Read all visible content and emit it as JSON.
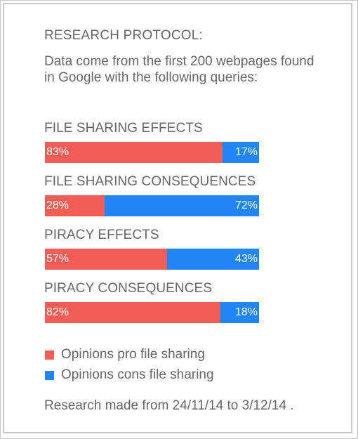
{
  "header": {
    "title": "RESEARCH PROTOCOL:",
    "intro": "Data come from the first 200  webpages found in  Google  with the following queries:"
  },
  "colors": {
    "pro": "#f25e55",
    "cons": "#2185f5",
    "text": "#666666"
  },
  "chart_data": {
    "type": "bar",
    "orientation": "horizontal",
    "stacked": true,
    "normalized": true,
    "value_unit": "%",
    "categories": [
      "FILE SHARING EFFECTS",
      "FILE SHARING CONSEQUENCES",
      "PIRACY EFFECTS",
      "PIRACY CONSEQUENCES"
    ],
    "series": [
      {
        "name": "Opinions pro file sharing",
        "color": "#f25e55",
        "values": [
          83,
          28,
          57,
          82
        ]
      },
      {
        "name": "Opinions cons file sharing",
        "color": "#2185f5",
        "values": [
          17,
          72,
          43,
          18
        ]
      }
    ],
    "data_labels": [
      [
        "83%",
        "17%"
      ],
      [
        "28%",
        "72%"
      ],
      [
        "57%",
        "43%"
      ],
      [
        "82%",
        "18%"
      ]
    ],
    "legend_position": "bottom-left",
    "grid": false
  },
  "footer": {
    "text": "Research made from 24/11/14  to 3/12/14 ."
  }
}
